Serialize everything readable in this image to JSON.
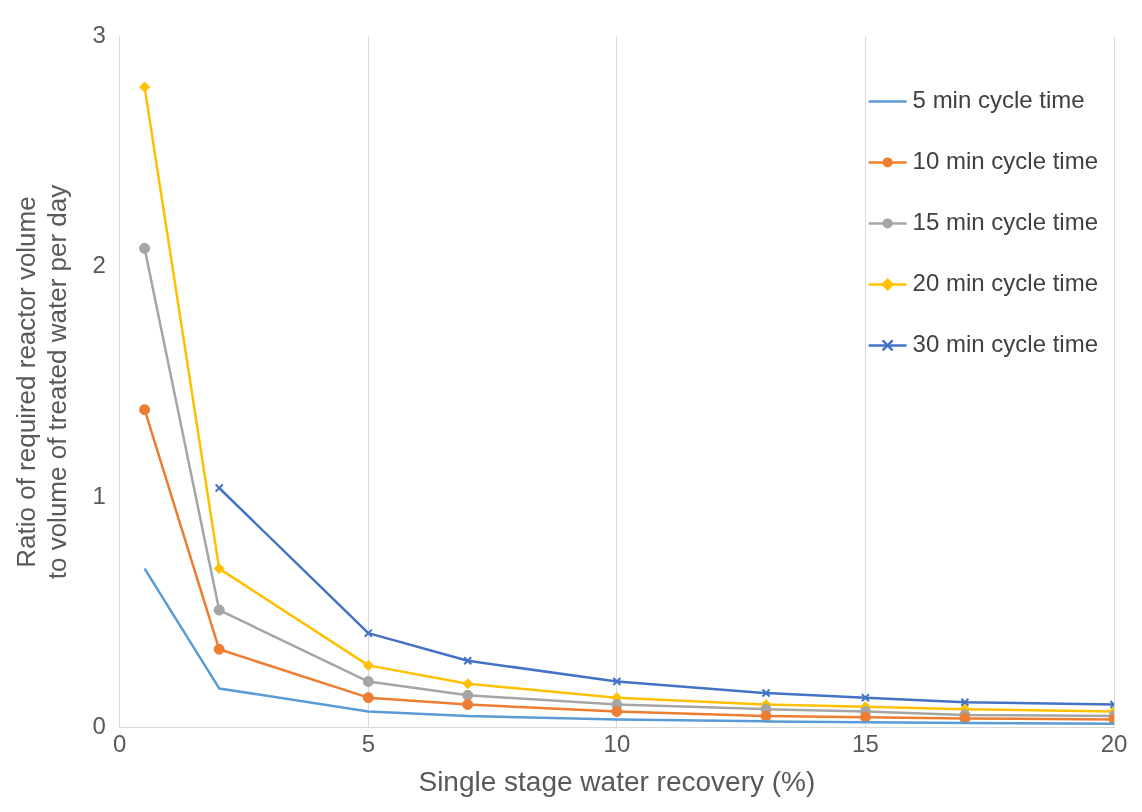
{
  "chart_data": {
    "type": "line",
    "xlabel": "Single stage water recovery (%)",
    "ylabel": "Ratio of required reactor volume to volume of treated water per day",
    "x": [
      0.5,
      2,
      5,
      7,
      10,
      13,
      15,
      17,
      20
    ],
    "series": [
      {
        "name": "5 min cycle time",
        "color": "#5b9bd5",
        "marker": "none",
        "values": [
          0.69,
          0.17,
          0.07,
          0.05,
          0.035,
          0.027,
          0.023,
          0.02,
          0.017
        ]
      },
      {
        "name": "10 min cycle time",
        "color": "#ed7d31",
        "marker": "circle",
        "values": [
          1.38,
          0.34,
          0.13,
          0.1,
          0.07,
          0.05,
          0.045,
          0.04,
          0.035
        ]
      },
      {
        "name": "15 min cycle time",
        "color": "#a5a5a5",
        "marker": "circle",
        "values": [
          2.08,
          0.51,
          0.2,
          0.14,
          0.1,
          0.08,
          0.07,
          0.055,
          0.05
        ]
      },
      {
        "name": "20 min cycle time",
        "color": "#ffc000",
        "marker": "diamond",
        "values": [
          2.78,
          0.69,
          0.27,
          0.19,
          0.13,
          0.1,
          0.09,
          0.08,
          0.07
        ]
      },
      {
        "name": "30 min cycle time",
        "color": "#4472c4",
        "marker": "cross",
        "values": [
          null,
          1.04,
          0.41,
          0.29,
          0.2,
          0.15,
          0.13,
          0.11,
          0.1
        ]
      }
    ],
    "xlim": [
      0,
      20
    ],
    "xticks": [
      0,
      5,
      10,
      15,
      20
    ],
    "ylim": [
      0,
      3
    ],
    "yticks": [
      0,
      1,
      2,
      3
    ],
    "grid": "x",
    "legend": "top right",
    "line_style": "solid"
  }
}
